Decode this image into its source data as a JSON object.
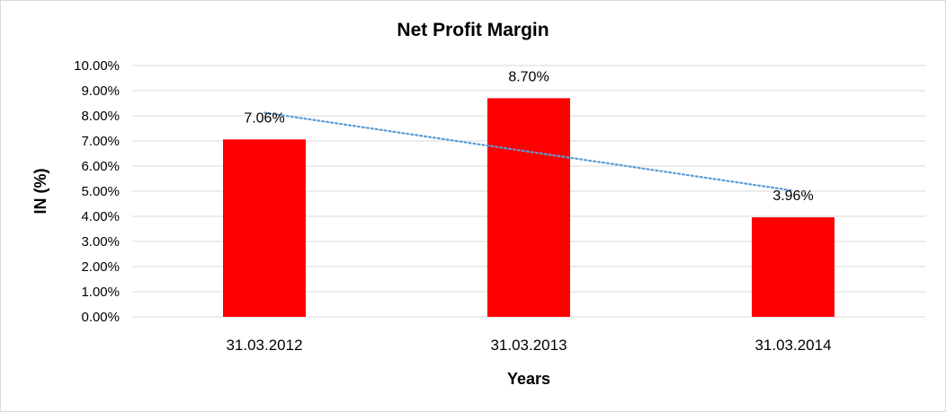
{
  "chart_data": {
    "type": "bar",
    "title": "Net Profit Margin",
    "xlabel": "Years",
    "ylabel": "IN (%)",
    "categories": [
      "31.03.2012",
      "31.03.2013",
      "31.03.2014"
    ],
    "values": [
      7.06,
      8.7,
      3.96
    ],
    "data_labels": [
      "7.06%",
      "8.70%",
      "3.96%"
    ],
    "ylim": [
      0,
      10
    ],
    "yticks": [
      0,
      1,
      2,
      3,
      4,
      5,
      6,
      7,
      8,
      9,
      10
    ],
    "ytick_labels": [
      "0.00%",
      "1.00%",
      "2.00%",
      "3.00%",
      "4.00%",
      "5.00%",
      "6.00%",
      "7.00%",
      "8.00%",
      "9.00%",
      "10.00%"
    ],
    "grid": true,
    "trendline": {
      "type": "linear",
      "style": "dotted"
    },
    "colors": {
      "bar": "#ff0000",
      "trendline": "#5b9bd5",
      "grid": "#d9d9d9"
    }
  }
}
